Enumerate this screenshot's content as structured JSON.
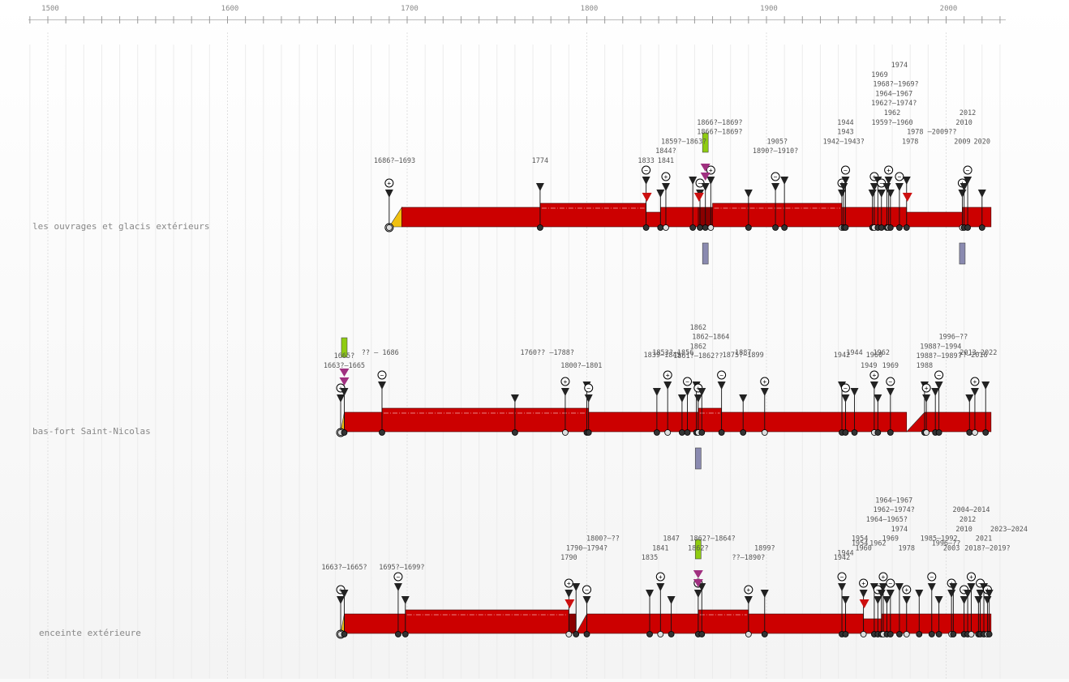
{
  "chart_data": {
    "type": "timeline",
    "xlim": [
      1490,
      2030
    ],
    "axis_ticks": [
      1500,
      1600,
      1700,
      1800,
      1900,
      2000
    ],
    "axis_tick_labels": [
      "1500",
      "1600",
      "1700",
      "1800",
      "1900",
      "2000"
    ],
    "colors": {
      "bar": "#cc0000",
      "bar_dark": "#8a0000",
      "start_wedge": "#f0c010",
      "green_marker": "#8fcc10",
      "purple_marker": "#8a8ab0",
      "arrow_purple": "#a03080",
      "arrow_red": "#cc1010",
      "arrow_green": "#7aa020"
    },
    "rows": [
      {
        "label": "les ouvrages et glacis extérieurs",
        "start": 1690,
        "end": 2025,
        "segments": [
          {
            "from": 1690,
            "to": 1697,
            "style": "wedge"
          },
          {
            "from": 1697,
            "to": 1774,
            "style": "solid"
          },
          {
            "from": 1774,
            "to": 1833,
            "style": "raised"
          },
          {
            "from": 1833,
            "to": 1841,
            "style": "low"
          },
          {
            "from": 1841,
            "to": 1862,
            "style": "solid"
          },
          {
            "from": 1862,
            "to": 1870,
            "style": "dark"
          },
          {
            "from": 1870,
            "to": 1942,
            "style": "raised"
          },
          {
            "from": 1942,
            "to": 1978,
            "style": "solid"
          },
          {
            "from": 1978,
            "to": 2009,
            "style": "low"
          },
          {
            "from": 2009,
            "to": 2025,
            "style": "solid"
          }
        ],
        "events": [
          1690,
          1774,
          1833,
          1841,
          1844,
          1859,
          1863,
          1866,
          1869,
          1890,
          1905,
          1910,
          1942,
          1943,
          1944,
          1959,
          1960,
          1962,
          1964,
          1967,
          1968,
          1969,
          1974,
          1978,
          2009,
          2010,
          2012,
          2020
        ],
        "labels": [
          {
            "year": 1693,
            "level": 0,
            "text": "1686?–1693"
          },
          {
            "year": 1774,
            "level": 0,
            "text": "1774"
          },
          {
            "year": 1833,
            "level": 0,
            "text": "1833"
          },
          {
            "year": 1844,
            "level": 0,
            "text": "1841"
          },
          {
            "year": 1844,
            "level": 1,
            "text": "1844?"
          },
          {
            "year": 1854,
            "level": 2,
            "text": "1859?–1863?"
          },
          {
            "year": 1874,
            "level": 3,
            "text": "1866?–1869?"
          },
          {
            "year": 1874,
            "level": 4,
            "text": "1866?–1869?"
          },
          {
            "year": 1905,
            "level": 1,
            "text": "1890?–1910?"
          },
          {
            "year": 1906,
            "level": 2,
            "text": "1905?"
          },
          {
            "year": 1943,
            "level": 2,
            "text": "1942–1943?"
          },
          {
            "year": 1944,
            "level": 3,
            "text": "1943"
          },
          {
            "year": 1944,
            "level": 4,
            "text": "1944"
          },
          {
            "year": 1980,
            "level": 2,
            "text": "1978"
          },
          {
            "year": 1992,
            "level": 3,
            "text": "1978 –2009??"
          },
          {
            "year": 1970,
            "level": 4,
            "text": "1959?–1960"
          },
          {
            "year": 1970,
            "level": 5,
            "text": "1962"
          },
          {
            "year": 1971,
            "level": 6,
            "text": "1962?–1974?"
          },
          {
            "year": 1971,
            "level": 7,
            "text": "1964–1967"
          },
          {
            "year": 1972,
            "level": 8,
            "text": "1968?–1969?"
          },
          {
            "year": 1963,
            "level": 9,
            "text": "1969"
          },
          {
            "year": 1974,
            "level": 10,
            "text": "1974"
          },
          {
            "year": 2009,
            "level": 2,
            "text": "2009"
          },
          {
            "year": 2010,
            "level": 4,
            "text": "2010"
          },
          {
            "year": 2012,
            "level": 5,
            "text": "2012"
          },
          {
            "year": 2020,
            "level": 2,
            "text": "2020"
          }
        ],
        "green_marker_year": 1866,
        "purple_marker_years": [
          1866,
          2009
        ]
      },
      {
        "label": "bas-fort Saint-Nicolas",
        "start": 1663,
        "end": 2025,
        "segments": [
          {
            "from": 1663,
            "to": 1665,
            "style": "wedge"
          },
          {
            "from": 1665,
            "to": 1686,
            "style": "solid"
          },
          {
            "from": 1686,
            "to": 1801,
            "style": "raised"
          },
          {
            "from": 1801,
            "to": 1862,
            "style": "solid"
          },
          {
            "from": 1862,
            "to": 1875,
            "style": "raised"
          },
          {
            "from": 1875,
            "to": 1978,
            "style": "solid"
          },
          {
            "from": 1978,
            "to": 1988,
            "style": "wedge"
          },
          {
            "from": 1988,
            "to": 2025,
            "style": "solid"
          }
        ],
        "events": [
          1663,
          1665,
          1686,
          1760,
          1788,
          1800,
          1801,
          1839,
          1845,
          1853,
          1856,
          1861,
          1862,
          1864,
          1875,
          1887,
          1899,
          1942,
          1944,
          1949,
          1960,
          1962,
          1969,
          1988,
          1989,
          1994,
          1996,
          2013,
          2016,
          2022
        ],
        "labels": [
          {
            "year": 1665,
            "level": 0,
            "text": "1663?–1665"
          },
          {
            "year": 1665,
            "level": 1,
            "text": "1665?"
          },
          {
            "year": 1685,
            "level": -1,
            "text": "?? – 1686"
          },
          {
            "year": 1778,
            "level": -1,
            "text": "1760?? –1788?"
          },
          {
            "year": 1797,
            "level": 0,
            "text": "1800?–1801"
          },
          {
            "year": 1842,
            "level": -2,
            "text": "1839–1845"
          },
          {
            "year": 1848,
            "level": -1,
            "text": "1853?–1856"
          },
          {
            "year": 1887,
            "level": -2,
            "text": "1875?–1899"
          },
          {
            "year": 1887,
            "level": -1,
            "text": "1887"
          },
          {
            "year": 1862,
            "level": 1,
            "text": "1861?–1862??"
          },
          {
            "year": 1862,
            "level": 2,
            "text": "1862"
          },
          {
            "year": 1869,
            "level": 3,
            "text": "1862–1864"
          },
          {
            "year": 1862,
            "level": 4,
            "text": "1862"
          },
          {
            "year": 1942,
            "level": -2,
            "text": "1942"
          },
          {
            "year": 1949,
            "level": -1,
            "text": "1944"
          },
          {
            "year": 1957,
            "level": 0,
            "text": "1949"
          },
          {
            "year": 1960,
            "level": -2,
            "text": "1960"
          },
          {
            "year": 1964,
            "level": -1,
            "text": "1962"
          },
          {
            "year": 1969,
            "level": 0,
            "text": "1969"
          },
          {
            "year": 1988,
            "level": 0,
            "text": "1988"
          },
          {
            "year": 1996,
            "level": 1,
            "text": "1988?–1989?"
          },
          {
            "year": 1997,
            "level": 2,
            "text": "1988?–1994"
          },
          {
            "year": 2004,
            "level": 3,
            "text": "1996–??"
          },
          {
            "year": 2015,
            "level": -2,
            "text": "??–2016"
          },
          {
            "year": 2018,
            "level": -1,
            "text": "2013–2022"
          }
        ],
        "green_marker_year": 1665,
        "purple_marker_years": [
          1862
        ]
      },
      {
        "label": "enceinte extérieure",
        "start": 1663,
        "end": 2025,
        "segments": [
          {
            "from": 1663,
            "to": 1665,
            "style": "wedge"
          },
          {
            "from": 1665,
            "to": 1699,
            "style": "solid"
          },
          {
            "from": 1699,
            "to": 1790,
            "style": "raised"
          },
          {
            "from": 1790,
            "to": 1794,
            "style": "dark"
          },
          {
            "from": 1794,
            "to": 1800,
            "style": "wedge"
          },
          {
            "from": 1800,
            "to": 1862,
            "style": "solid"
          },
          {
            "from": 1862,
            "to": 1890,
            "style": "raised"
          },
          {
            "from": 1890,
            "to": 1954,
            "style": "solid"
          },
          {
            "from": 1954,
            "to": 1964,
            "style": "low"
          },
          {
            "from": 1964,
            "to": 2025,
            "style": "solid"
          }
        ],
        "events": [
          1663,
          1665,
          1695,
          1699,
          1790,
          1794,
          1800,
          1835,
          1841,
          1847,
          1862,
          1864,
          1890,
          1899,
          1942,
          1944,
          1954,
          1960,
          1962,
          1964,
          1965,
          1967,
          1969,
          1974,
          1978,
          1985,
          1992,
          1996,
          2003,
          2004,
          2010,
          2012,
          2014,
          2018,
          2019,
          2021,
          2023,
          2024
        ],
        "labels": [
          {
            "year": 1665,
            "level": 0,
            "text": "1663?–1665?"
          },
          {
            "year": 1697,
            "level": 0,
            "text": "1695?–1699?"
          },
          {
            "year": 1790,
            "level": 1,
            "text": "1790"
          },
          {
            "year": 1800,
            "level": 2,
            "text": "1790–1794?"
          },
          {
            "year": 1809,
            "level": 3,
            "text": "1800?–??"
          },
          {
            "year": 1835,
            "level": 1,
            "text": "1835"
          },
          {
            "year": 1841,
            "level": 2,
            "text": "1841"
          },
          {
            "year": 1847,
            "level": 3,
            "text": "1847"
          },
          {
            "year": 1862,
            "level": 2,
            "text": "1862?"
          },
          {
            "year": 1870,
            "level": 3,
            "text": "1862?–1864?"
          },
          {
            "year": 1890,
            "level": 1,
            "text": "??–1890?"
          },
          {
            "year": 1899,
            "level": 2,
            "text": "1899?"
          },
          {
            "year": 1942,
            "level": 1,
            "text": "1942"
          },
          {
            "year": 1944,
            "level": 1.5,
            "text": "1944"
          },
          {
            "year": 1954,
            "level": 2,
            "text": "1960"
          },
          {
            "year": 1952,
            "level": 2.5,
            "text": "1954"
          },
          {
            "year": 1952,
            "level": 3,
            "text": "1954"
          },
          {
            "year": 1962,
            "level": 2.5,
            "text": "1962"
          },
          {
            "year": 1969,
            "level": 3,
            "text": "1969"
          },
          {
            "year": 1978,
            "level": 2,
            "text": "1978"
          },
          {
            "year": 1974,
            "level": 4,
            "text": "1974"
          },
          {
            "year": 1967,
            "level": 5,
            "text": "1964–1965?"
          },
          {
            "year": 1971,
            "level": 6,
            "text": "1962–1974?"
          },
          {
            "year": 1971,
            "level": 7,
            "text": "1964–1967"
          },
          {
            "year": 2003,
            "level": 2,
            "text": "2003"
          },
          {
            "year": 1996,
            "level": 3,
            "text": "1985–1992"
          },
          {
            "year": 2000,
            "level": 2.5,
            "text": "1996–??"
          },
          {
            "year": 2010,
            "level": 4,
            "text": "2010"
          },
          {
            "year": 2012,
            "level": 5,
            "text": "2012"
          },
          {
            "year": 2014,
            "level": 6,
            "text": "2004–2014"
          },
          {
            "year": 2021,
            "level": 3,
            "text": "2021"
          },
          {
            "year": 2023,
            "level": 2,
            "text": "2018?–2019?"
          },
          {
            "year": 2035,
            "level": 4,
            "text": "2023–2024"
          }
        ],
        "green_marker_year": 1862,
        "purple_marker_years": []
      }
    ]
  }
}
